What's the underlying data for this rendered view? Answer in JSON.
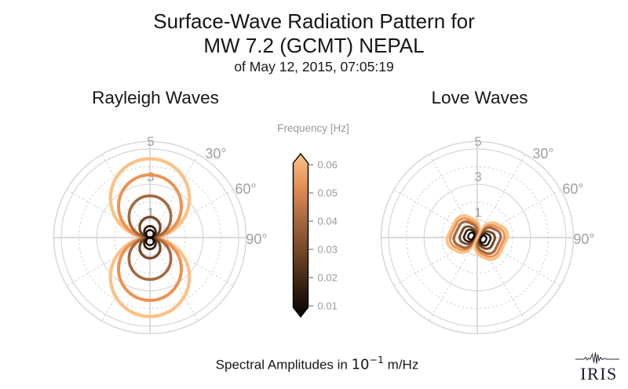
{
  "header": {
    "title_line1": "Surface-Wave Radiation Pattern for",
    "title_line2": "MW 7.2 (GCMT) NEPAL",
    "subtitle": "of May 12, 2015, 07:05:19"
  },
  "footer": {
    "caption_prefix": "Spectral Amplitudes in ",
    "caption_base": "10",
    "caption_exponent": "−1",
    "caption_suffix": " m/Hz"
  },
  "logo": {
    "text": "IRIS"
  },
  "colorbar": {
    "title": "Frequency [Hz]",
    "tick_labels": [
      "0.06",
      "0.05",
      "0.04",
      "0.03",
      "0.02",
      "0.01"
    ],
    "gradient_stops": [
      [
        "0",
        "#040200"
      ],
      [
        "0.18",
        "#331f10"
      ],
      [
        "0.38",
        "#6f4325"
      ],
      [
        "0.58",
        "#a1663e"
      ],
      [
        "0.78",
        "#e08a52"
      ],
      [
        "1",
        "#fcc287"
      ]
    ],
    "outline_color": "#000000"
  },
  "palette": {
    "contour_colors_by_frequency_asc": [
      "#0d0706",
      "#35200f",
      "#754726",
      "#a5693f",
      "#ef9150",
      "#fbc185"
    ],
    "grid_color": "#d6d6d6",
    "axis_line_color": "#c4c4c4",
    "label_color": "#9e9e9e"
  },
  "chart_data": [
    {
      "type": "polar_contour",
      "title": "Rayleigh Waves",
      "pattern": "two_lobe_vertical",
      "frequencies_hz": [
        0.01,
        0.02,
        0.03,
        0.04,
        0.05,
        0.06
      ],
      "lobe_peak_radius": [
        0.43,
        0.65,
        1.16,
        2.36,
        3.54,
        4.45
      ],
      "r_tick_values": [
        5,
        3,
        1
      ],
      "r_tick_labels": [
        "5",
        "3",
        "1"
      ],
      "r_solid_rings": [
        1,
        3,
        5
      ],
      "r_dotted_rings": [
        2,
        4
      ],
      "r_max": 5.42,
      "angle_tick_labels": [
        "30°",
        "60°",
        "90°"
      ],
      "angle_tick_values_deg": [
        30,
        60,
        90
      ],
      "spoke_angles_deg": [
        30,
        60,
        120,
        150,
        210,
        240,
        300,
        330
      ],
      "amplitude_units": "10^-1 m/Hz"
    },
    {
      "type": "polar_contour",
      "title": "Love Waves",
      "pattern": "two_bean_horizontal_tilted",
      "frequencies_hz": [
        0.01,
        0.02,
        0.03,
        0.04,
        0.05,
        0.06
      ],
      "tilt_deg": 14,
      "bean_self_tilt_deg": 12,
      "beans": [
        {
          "gap": 0.2,
          "len": 0.31,
          "h": 0.4,
          "rx": 0.15
        },
        {
          "gap": 0.2,
          "len": 0.52,
          "h": 0.66,
          "rx": 0.22
        },
        {
          "gap": 0.2,
          "len": 0.74,
          "h": 0.97,
          "rx": 0.31
        },
        {
          "gap": 0.16,
          "len": 1.06,
          "h": 1.42,
          "rx": 0.4
        },
        {
          "gap": 0.13,
          "len": 1.28,
          "h": 1.72,
          "rx": 0.49
        },
        {
          "gap": 0.09,
          "len": 1.46,
          "h": 2.03,
          "rx": 0.57
        }
      ],
      "r_tick_values": [
        5,
        3,
        1
      ],
      "r_tick_labels": [
        "5",
        "3",
        "1"
      ],
      "r_solid_rings": [
        1,
        3,
        5
      ],
      "r_dotted_rings": [
        2,
        4
      ],
      "r_max": 5.42,
      "angle_tick_labels": [
        "30°",
        "60°",
        "90°"
      ],
      "angle_tick_values_deg": [
        30,
        60,
        90
      ],
      "spoke_angles_deg": [
        30,
        60,
        120,
        150,
        210,
        240,
        300,
        330
      ],
      "amplitude_units": "10^-1 m/Hz"
    }
  ]
}
